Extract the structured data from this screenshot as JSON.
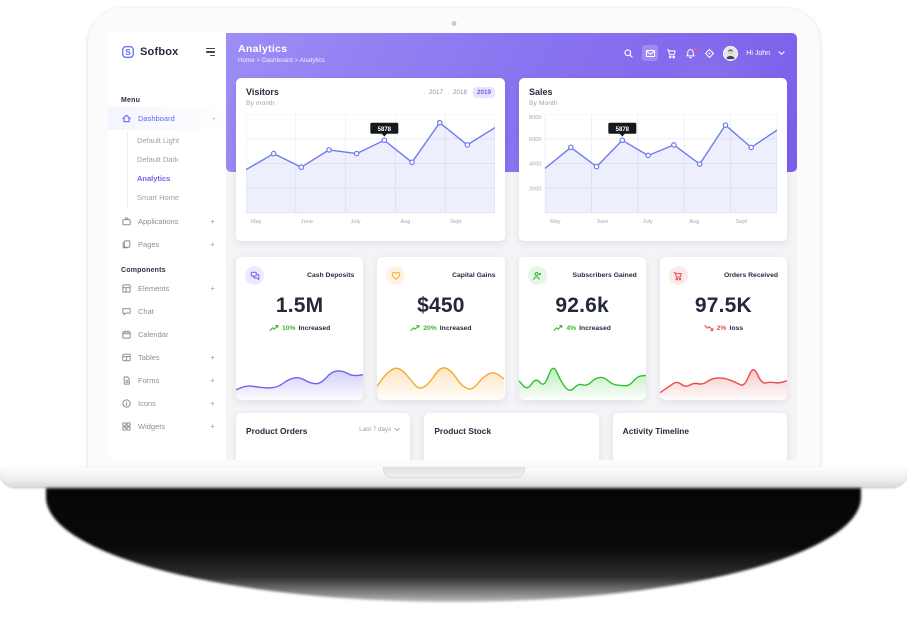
{
  "brand": {
    "name": "Sofbox"
  },
  "colors": {
    "header_gradient_start": "#9c8ef6",
    "header_gradient_end": "#7c5eea",
    "primary": "#5f6cf6",
    "violet_active": "#7e5bef",
    "chart_line": "#6d7cee",
    "green": "#3cb72c",
    "orange": "#f8a731",
    "red": "#e84b4b",
    "indigo": "#6e62f0",
    "tooltip_bg": "#17181d"
  },
  "sidebar": {
    "logo_text": "Sofbox",
    "sections": [
      {
        "label": "Menu",
        "items": [
          {
            "label": "Dashboard",
            "icon": "home-icon",
            "expand": "-",
            "active": true,
            "children": [
              {
                "label": "Default Light",
                "active": false
              },
              {
                "label": "Default Dark",
                "active": false
              },
              {
                "label": "Analytics",
                "active": true
              },
              {
                "label": "Smart Home",
                "active": false
              }
            ]
          },
          {
            "label": "Applications",
            "icon": "briefcase-icon",
            "expand": "+"
          },
          {
            "label": "Pages",
            "icon": "pages-icon",
            "expand": "+"
          }
        ]
      },
      {
        "label": "Components",
        "items": [
          {
            "label": "Elements",
            "icon": "grid-icon",
            "expand": "+"
          },
          {
            "label": "Chat",
            "icon": "chat-icon",
            "expand": ""
          },
          {
            "label": "Calendar",
            "icon": "calendar-icon",
            "expand": ""
          },
          {
            "label": "Tables",
            "icon": "table-icon",
            "expand": "+"
          },
          {
            "label": "Forms",
            "icon": "file-icon",
            "expand": "+"
          },
          {
            "label": "Icons",
            "icon": "info-circle-icon",
            "expand": "+"
          },
          {
            "label": "Widgets",
            "icon": "widgets-icon",
            "expand": "+"
          }
        ]
      }
    ]
  },
  "header": {
    "title": "Analytics",
    "breadcrumb": "Home > Dashboard > Analytics",
    "icons": [
      "search",
      "mail",
      "cart",
      "bell",
      "locate"
    ],
    "greeting": "Hi John"
  },
  "stats": [
    {
      "title": "Cash Deposits",
      "value": "1.5M",
      "change": "10%",
      "change_text": "Increased",
      "direction": "up",
      "icon": "chat-bubbles-icon",
      "color": "#6e62f0"
    },
    {
      "title": "Capital Gains",
      "value": "$450",
      "change": "20%",
      "change_text": "Increased",
      "direction": "up",
      "icon": "heart-icon",
      "color": "#f8a731"
    },
    {
      "title": "Subscribers Gained",
      "value": "92.6k",
      "change": "4%",
      "change_text": "Increased",
      "direction": "up",
      "icon": "user-icon",
      "color": "#2fc12f"
    },
    {
      "title": "Orders Received",
      "value": "97.5K",
      "change": "2%",
      "change_text": "loss",
      "direction": "down",
      "icon": "cart-icon",
      "color": "#e84b4b"
    }
  ],
  "bottom_cards": [
    {
      "title": "Product Orders",
      "filter": "Last 7 days"
    },
    {
      "title": "Product Stock",
      "filter": ""
    },
    {
      "title": "Activity Timeline",
      "filter": ""
    }
  ],
  "chart_data": [
    {
      "id": "visitors",
      "type": "line",
      "title": "Visitors",
      "subtitle": "By month",
      "tabs": [
        "2017",
        "2018",
        "2019"
      ],
      "active_tab": "2019",
      "x_labels": [
        "May",
        "June",
        "July",
        "Aug",
        "Sept"
      ],
      "series": [
        {
          "name": "Visitors",
          "values": [
            3500,
            4800,
            3700,
            5100,
            4800,
            5878,
            4100,
            7300,
            5500,
            6900
          ]
        }
      ],
      "ylim": [
        0,
        8000
      ],
      "grid": true,
      "tooltip": {
        "index": 5,
        "label": "5878"
      },
      "line_color": "#6d7cee",
      "fill_color": "rgba(109,124,238,0.12)"
    },
    {
      "id": "sales",
      "type": "line",
      "title": "Sales",
      "subtitle": "By Month",
      "x_labels": [
        "May",
        "June",
        "July",
        "Aug",
        "Sept"
      ],
      "y_ticks": [
        8000,
        6000,
        4000,
        2000
      ],
      "series": [
        {
          "name": "Sales",
          "values": [
            3600,
            5300,
            3750,
            5878,
            4650,
            5500,
            3950,
            7100,
            5300,
            6700
          ]
        }
      ],
      "ylim": [
        0,
        8000
      ],
      "grid": true,
      "tooltip": {
        "index": 3,
        "label": "5878"
      },
      "line_color": "#6d7cee",
      "fill_color": "rgba(109,124,238,0.12)"
    },
    {
      "id": "spark-cash",
      "type": "area",
      "color": "#6e62f0",
      "values": [
        20,
        32,
        28,
        24,
        28,
        50,
        56,
        38,
        36,
        70,
        74,
        58,
        62
      ]
    },
    {
      "id": "spark-capital",
      "type": "area",
      "color": "#f8a731",
      "values": [
        30,
        70,
        85,
        55,
        18,
        40,
        85,
        75,
        30,
        18,
        55,
        72,
        50
      ]
    },
    {
      "id": "spark-subscribers",
      "type": "area",
      "color": "#2fc12f",
      "values": [
        45,
        18,
        55,
        25,
        95,
        40,
        12,
        38,
        30,
        52,
        56,
        35,
        32,
        30,
        58,
        60
      ]
    },
    {
      "id": "spark-orders",
      "type": "area",
      "color": "#e84b4b",
      "values": [
        12,
        28,
        45,
        26,
        40,
        34,
        50,
        54,
        50,
        40,
        28,
        90,
        36,
        42,
        38,
        45
      ]
    }
  ]
}
